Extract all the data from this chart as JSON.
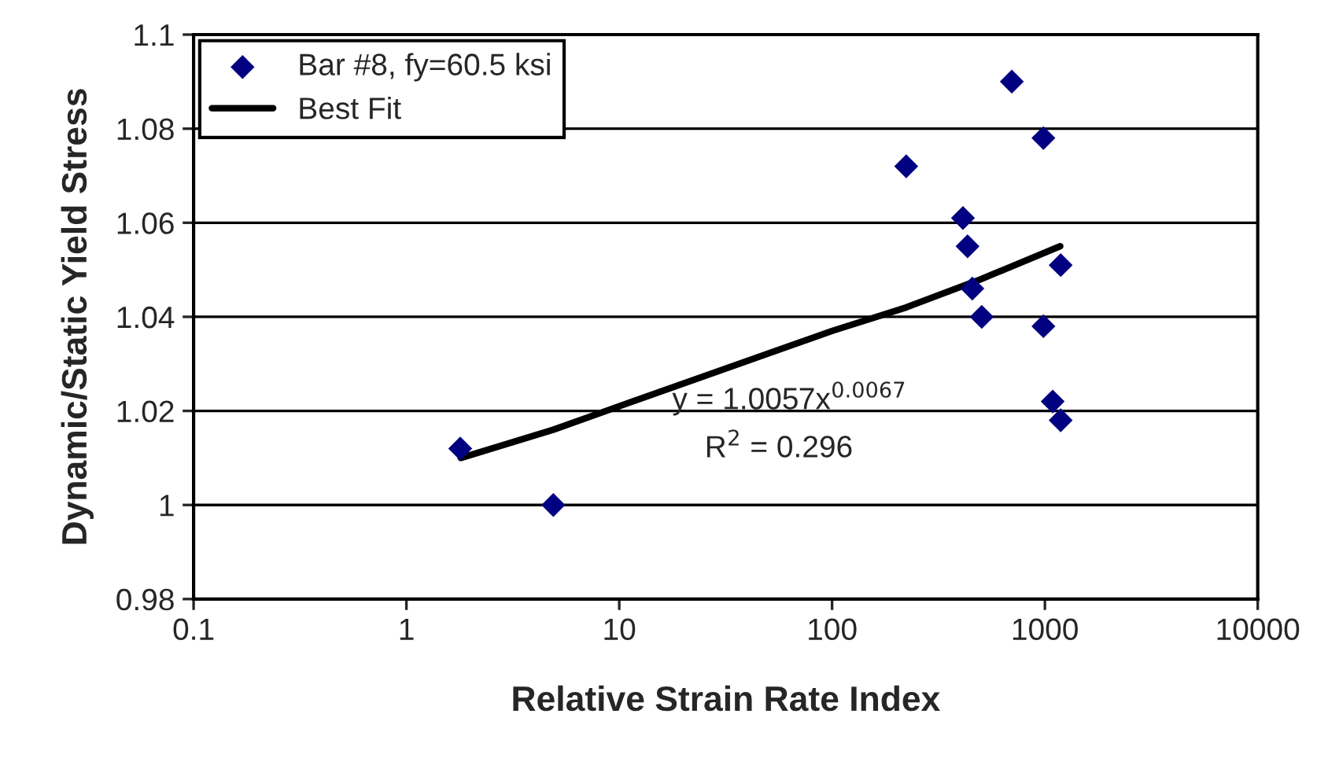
{
  "chart_data": {
    "type": "scatter",
    "xlabel": "Relative Strain Rate Index",
    "ylabel": "Dynamic/Static Yield Stress",
    "log": "x",
    "xlim": [
      0.1,
      10000
    ],
    "xticks": [
      0.1,
      1,
      10,
      100,
      1000,
      10000
    ],
    "ylim": [
      0.98,
      1.1
    ],
    "yticks": [
      0.98,
      1,
      1.02,
      1.04,
      1.06,
      1.08,
      1.1
    ],
    "grid": "y",
    "legend": "top left",
    "series": [
      {
        "name": "Bar #8, fy=60.5 ksi",
        "marker": "diamond",
        "color": "#000080",
        "x": [
          1.79,
          4.9,
          223,
          412,
          433,
          456,
          505,
          699,
          984,
          984,
          1088,
          1186,
          1186
        ],
        "values": [
          1.012,
          1.0,
          1.072,
          1.061,
          1.055,
          1.046,
          1.04,
          1.09,
          1.078,
          1.038,
          1.022,
          1.051,
          1.018
        ]
      },
      {
        "name": "Best Fit",
        "type": "line",
        "marker": "none",
        "line_style": "solid",
        "color": "#000000",
        "x": [
          1.8,
          4.9,
          10,
          100,
          223,
          500,
          1180
        ],
        "values": [
          1.01,
          1.016,
          1.021,
          1.037,
          1.042,
          1.048,
          1.055
        ]
      }
    ],
    "annotations": [
      "y = 1.0057x$^{0.0067}$",
      "R$^{2}$ = 0.296"
    ]
  }
}
